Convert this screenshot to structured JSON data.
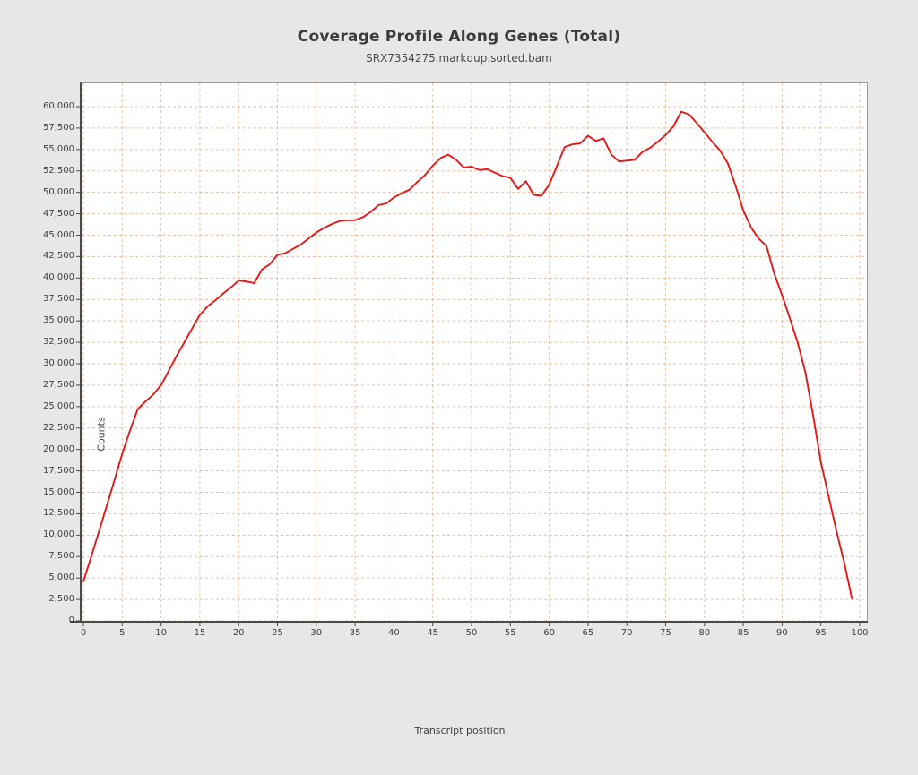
{
  "figure": {
    "title": "Coverage Profile Along Genes (Total)",
    "subtitle": "SRX7354275.markdup.sorted.bam",
    "background_color": "#e7e7e7"
  },
  "chart_data": {
    "type": "line",
    "title": "Coverage Profile Along Genes (Total)",
    "subtitle": "SRX7354275.markdup.sorted.bam",
    "xlabel": "Transcript position",
    "ylabel": "Counts",
    "xlim": [
      0,
      100
    ],
    "ylim": [
      0,
      60000
    ],
    "x_ticks": [
      0,
      5,
      10,
      15,
      20,
      25,
      30,
      35,
      40,
      45,
      50,
      55,
      60,
      65,
      70,
      75,
      80,
      85,
      90,
      95,
      100
    ],
    "y_ticks": [
      0,
      2500,
      5000,
      7500,
      10000,
      12500,
      15000,
      17500,
      20000,
      22500,
      25000,
      27500,
      30000,
      32500,
      35000,
      37500,
      40000,
      42500,
      45000,
      47500,
      50000,
      52500,
      55000,
      57500,
      60000
    ],
    "grid": "dashed",
    "grid_color": "#f0ad74",
    "line_color": "#e81515",
    "plot_background": "#ffffff",
    "legend_position": "none",
    "series": [
      {
        "name": "SRX7354275.markdup.sorted.bam",
        "x": [
          0,
          1,
          2,
          3,
          4,
          5,
          6,
          7,
          8,
          9,
          10,
          11,
          12,
          13,
          14,
          15,
          16,
          17,
          18,
          19,
          20,
          21,
          22,
          23,
          24,
          25,
          26,
          27,
          28,
          29,
          30,
          31,
          32,
          33,
          34,
          35,
          36,
          37,
          38,
          39,
          40,
          41,
          42,
          43,
          44,
          45,
          46,
          47,
          48,
          49,
          50,
          51,
          52,
          53,
          54,
          55,
          56,
          57,
          58,
          59,
          60,
          61,
          62,
          63,
          64,
          65,
          66,
          67,
          68,
          69,
          70,
          71,
          72,
          73,
          74,
          75,
          76,
          77,
          78,
          79,
          80,
          81,
          82,
          83,
          84,
          85,
          86,
          87,
          88,
          89,
          90,
          91,
          92,
          93,
          94,
          95,
          96,
          97,
          98,
          99
        ],
        "values": [
          4600,
          7500,
          10400,
          13400,
          16400,
          19500,
          22200,
          24700,
          25600,
          26400,
          27500,
          29200,
          30900,
          32500,
          34100,
          35700,
          36700,
          37400,
          38200,
          38900,
          39700,
          39600,
          39400,
          41000,
          41600,
          42700,
          42900,
          43400,
          43900,
          44600,
          45300,
          45850,
          46300,
          46650,
          46750,
          46750,
          47100,
          47700,
          48500,
          48700,
          49400,
          49900,
          50300,
          51200,
          52000,
          53100,
          54000,
          54400,
          53800,
          52900,
          53000,
          52600,
          52700,
          52300,
          51900,
          51700,
          50400,
          51300,
          49700,
          49600,
          50900,
          53100,
          55300,
          55600,
          55700,
          56600,
          56000,
          56300,
          54400,
          53600,
          53700,
          53800,
          54700,
          55200,
          55900,
          56700,
          57700,
          59400,
          59100,
          58100,
          57000,
          55900,
          54900,
          53400,
          50800,
          47900,
          45900,
          44600,
          43700,
          40500,
          38000,
          35300,
          32500,
          29000,
          24000,
          18500,
          14500,
          10500,
          6800,
          2600
        ]
      }
    ]
  }
}
